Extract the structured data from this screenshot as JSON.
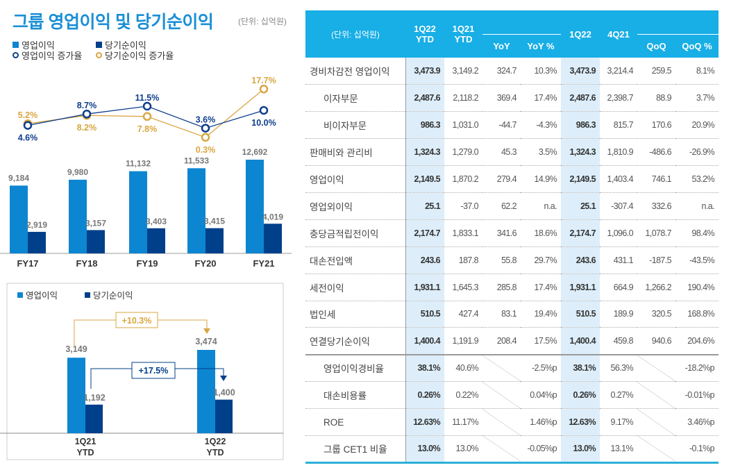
{
  "title": "그룹 영업이익 및 당기순이익",
  "unit": "(단위: 십억원)",
  "legend": {
    "op": "영업이익",
    "net": "당기순이익",
    "op_growth": "영업이익 증가율",
    "net_growth": "당기순이익 증가율"
  },
  "colors": {
    "op": "#0d86d1",
    "net": "#003f8a",
    "op_growth": "#0e3d8c",
    "net_growth": "#d9a640",
    "header": "#18aee6"
  },
  "chart_data": [
    {
      "type": "bar",
      "categories": [
        "FY17",
        "FY18",
        "FY19",
        "FY20",
        "FY21"
      ],
      "series": [
        {
          "name": "영업이익",
          "values": [
            9184,
            9980,
            11132,
            11533,
            12692
          ]
        },
        {
          "name": "당기순이익",
          "values": [
            2919,
            3157,
            3403,
            3415,
            4019
          ]
        }
      ],
      "value_labels": {
        "op": [
          "9,184",
          "9,980",
          "11,132",
          "11,533",
          "12,692"
        ],
        "net": [
          "2,919",
          "3,157",
          "3,403",
          "3,415",
          "4,019"
        ]
      }
    },
    {
      "type": "line",
      "categories": [
        "FY17",
        "FY18",
        "FY19",
        "FY20",
        "FY21"
      ],
      "series": [
        {
          "name": "영업이익 증가율",
          "values": [
            4.6,
            8.7,
            11.5,
            3.6,
            10.0
          ],
          "labels": [
            "4.6%",
            "8.7%",
            "11.5%",
            "3.6%",
            "10.0%"
          ]
        },
        {
          "name": "당기순이익 증가율",
          "values": [
            5.2,
            8.2,
            7.8,
            0.3,
            17.7
          ],
          "labels": [
            "5.2%",
            "8.2%",
            "7.8%",
            "0.3%",
            "17.7%"
          ]
        }
      ]
    },
    {
      "type": "bar",
      "categories": [
        "1Q21 YTD",
        "1Q22 YTD"
      ],
      "category_lines": [
        [
          "1Q21",
          "YTD"
        ],
        [
          "1Q22",
          "YTD"
        ]
      ],
      "series": [
        {
          "name": "영업이익",
          "values": [
            3149,
            3474
          ],
          "labels": [
            "3,149",
            "3,474"
          ]
        },
        {
          "name": "당기순이익",
          "values": [
            1192,
            1400
          ],
          "labels": [
            "1,192",
            "1,400"
          ]
        }
      ],
      "annotations": {
        "op_change": "+10.3%",
        "net_change": "+17.5%"
      }
    }
  ],
  "table": {
    "unit": "(단위: 십억원)",
    "headers": [
      "1Q22 YTD",
      "1Q21 YTD",
      "YoY",
      "YoY %",
      "1Q22",
      "4Q21",
      "QoQ",
      "QoQ %"
    ],
    "rows": [
      [
        "경비차감전 영업이익",
        "3,473.9",
        "3,149.2",
        "324.7",
        "10.3%",
        "3,473.9",
        "3,214.4",
        "259.5",
        "8.1%"
      ],
      [
        "이자부문",
        "2,487.6",
        "2,118.2",
        "369.4",
        "17.4%",
        "2,487.6",
        "2,398.7",
        "88.9",
        "3.7%"
      ],
      [
        "비이자부문",
        "986.3",
        "1,031.0",
        "-44.7",
        "-4.3%",
        "986.3",
        "815.7",
        "170.6",
        "20.9%"
      ],
      [
        "판매비와 관리비",
        "1,324.3",
        "1,279.0",
        "45.3",
        "3.5%",
        "1,324.3",
        "1,810.9",
        "-486.6",
        "-26.9%"
      ],
      [
        "영업이익",
        "2,149.5",
        "1,870.2",
        "279.4",
        "14.9%",
        "2,149.5",
        "1,403.4",
        "746.1",
        "53.2%"
      ],
      [
        "영업외이익",
        "25.1",
        "-37.0",
        "62.2",
        "n.a.",
        "25.1",
        "-307.4",
        "332.6",
        "n.a."
      ],
      [
        "충당금적립전이익",
        "2,174.7",
        "1,833.1",
        "341.6",
        "18.6%",
        "2,174.7",
        "1,096.0",
        "1,078.7",
        "98.4%"
      ],
      [
        "대손전입액",
        "243.6",
        "187.8",
        "55.8",
        "29.7%",
        "243.6",
        "431.1",
        "-187.5",
        "-43.5%"
      ],
      [
        "세전이익",
        "1,931.1",
        "1,645.3",
        "285.8",
        "17.4%",
        "1,931.1",
        "664.9",
        "1,266.2",
        "190.4%"
      ],
      [
        "법인세",
        "510.5",
        "427.4",
        "83.1",
        "19.4%",
        "510.5",
        "189.9",
        "320.5",
        "168.8%"
      ],
      [
        "연결당기순이익",
        "1,400.4",
        "1,191.9",
        "208.4",
        "17.5%",
        "1,400.4",
        "459.8",
        "940.6",
        "204.6%"
      ],
      [
        "영업이익경비율",
        "38.1%",
        "40.6%",
        "",
        "-2.5%p",
        "38.1%",
        "56.3%",
        "",
        "-18.2%p"
      ],
      [
        "대손비용률",
        "0.26%",
        "0.22%",
        "",
        "0.04%p",
        "0.26%",
        "0.27%",
        "",
        "-0.01%p"
      ],
      [
        "ROE",
        "12.63%",
        "11.17%",
        "",
        "1.46%p",
        "12.63%",
        "9.17%",
        "",
        "3.46%p"
      ],
      [
        "그룹 CET1 비율",
        "13.0%",
        "13.0%",
        "",
        "-0.05%p",
        "13.0%",
        "13.1%",
        "",
        "-0.1%p"
      ]
    ]
  }
}
